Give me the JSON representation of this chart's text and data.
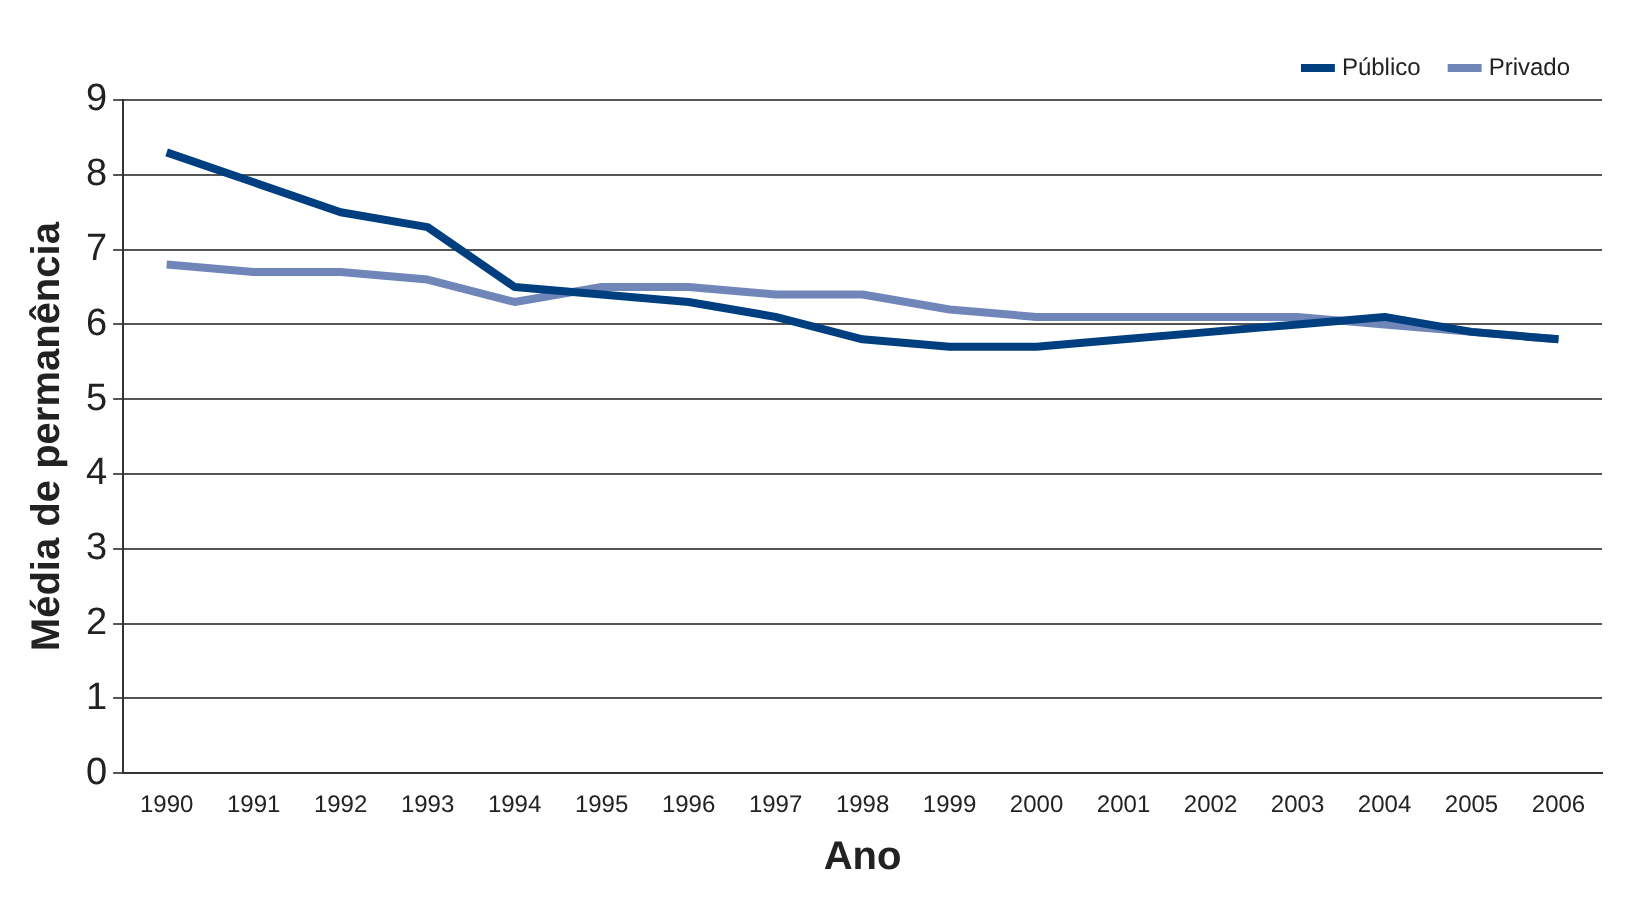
{
  "chart_data": {
    "type": "line",
    "xlabel": "Ano",
    "ylabel": "Média de permanência",
    "categories": [
      "1990",
      "1991",
      "1992",
      "1993",
      "1994",
      "1995",
      "1996",
      "1997",
      "1998",
      "1999",
      "2000",
      "2001",
      "2002",
      "2003",
      "2004",
      "2005",
      "2006"
    ],
    "series": [
      {
        "name": "Público",
        "color": "#003f7f",
        "values": [
          8.3,
          7.9,
          7.5,
          7.3,
          6.5,
          6.4,
          6.3,
          6.1,
          5.8,
          5.7,
          5.7,
          5.8,
          5.9,
          6.0,
          6.1,
          5.9,
          5.8
        ]
      },
      {
        "name": "Privado",
        "color": "#7186b8",
        "values": [
          6.8,
          6.7,
          6.7,
          6.6,
          6.3,
          6.5,
          6.5,
          6.4,
          6.4,
          6.2,
          6.1,
          6.1,
          6.1,
          6.1,
          6.0,
          5.9,
          5.8
        ]
      }
    ],
    "ylim": [
      0,
      9
    ],
    "yticks": [
      0,
      1,
      2,
      3,
      4,
      5,
      6,
      7,
      8,
      9
    ],
    "grid": "y",
    "legend": "top right",
    "marker": "none",
    "line_style": "solid"
  }
}
